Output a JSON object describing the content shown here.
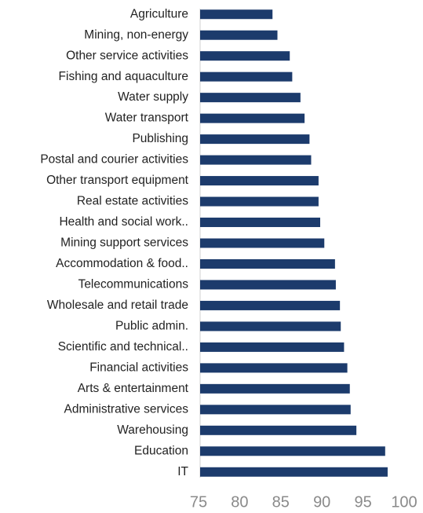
{
  "chart_data": {
    "type": "barh",
    "categories": [
      "Agriculture",
      "Mining, non-energy",
      "Other service activities",
      "Fishing and aquaculture",
      "Water supply",
      "Water transport",
      "Publishing",
      "Postal and courier activities",
      "Other transport equipment",
      "Real estate activities",
      "Health and social work..",
      "Mining support services",
      "Accommodation & food..",
      "Telecommunications",
      "Wholesale and retail trade",
      "Public admin.",
      "Scientific and technical..",
      "Financial activities",
      "Arts & entertainment",
      "Administrative services",
      "Warehousing",
      "Education",
      "IT"
    ],
    "values": [
      83.8,
      84.4,
      85.9,
      86.2,
      87.2,
      87.7,
      88.3,
      88.5,
      89.4,
      89.4,
      89.6,
      90.1,
      91.4,
      91.5,
      92.0,
      92.1,
      92.5,
      92.9,
      93.2,
      93.3,
      94.0,
      97.5,
      97.8
    ],
    "color": "#1c3b6c",
    "xlim": [
      75,
      100
    ],
    "xticks": [
      75,
      80,
      85,
      90,
      95,
      100
    ]
  }
}
